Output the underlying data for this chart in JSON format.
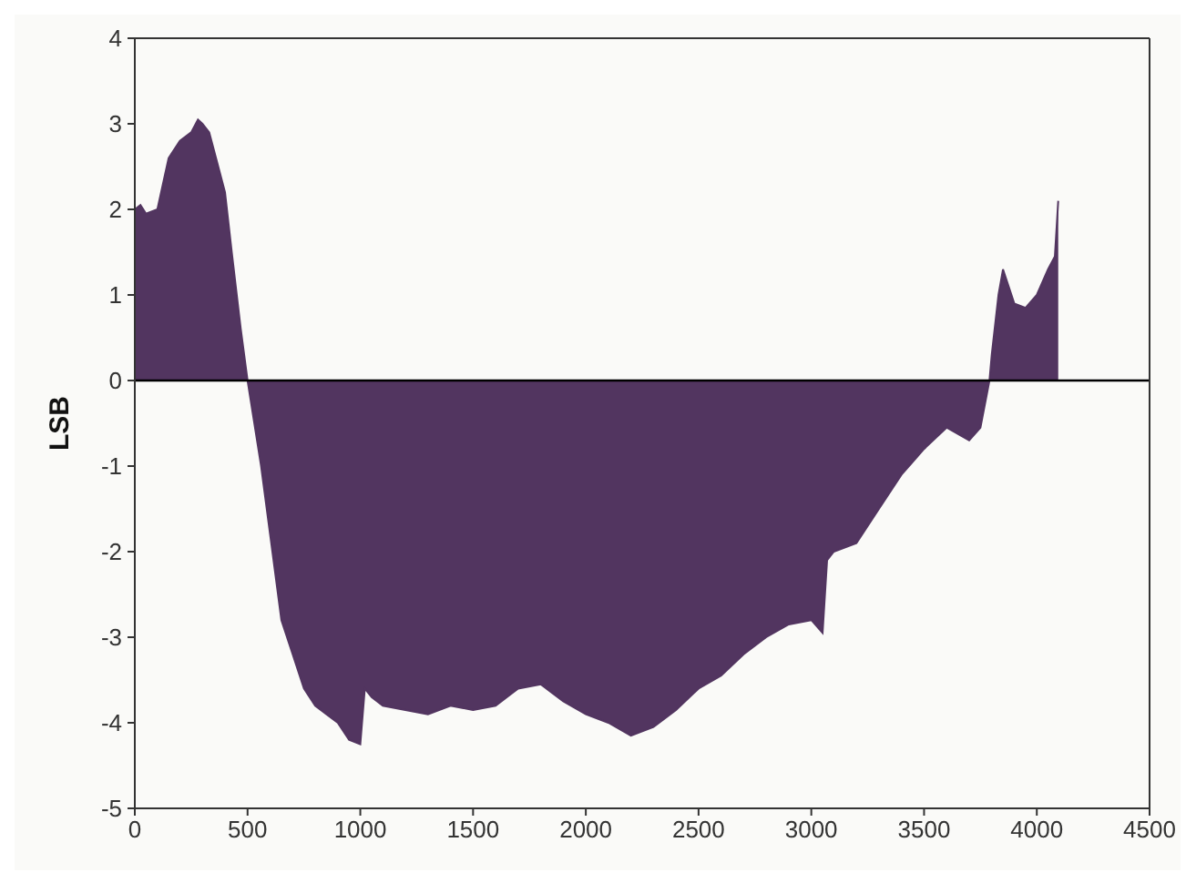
{
  "chart_data": {
    "type": "area",
    "ylabel": "LSB",
    "xlim": [
      0,
      4500
    ],
    "xticks": [
      0,
      500,
      1000,
      1500,
      2000,
      2500,
      3000,
      3500,
      4000,
      4500
    ],
    "ylim": [
      -5,
      4
    ],
    "yticks": [
      -5,
      -4,
      -3,
      -2,
      -1,
      0,
      1,
      2,
      3,
      4
    ],
    "grid": false,
    "legend": false,
    "ref_lines": [
      {
        "axis": "y",
        "value": 0,
        "color": "#000000"
      }
    ],
    "series": [
      {
        "color": "#523560",
        "x": [
          0,
          25,
          50,
          100,
          125,
          150,
          200,
          250,
          280,
          300,
          330,
          360,
          400,
          430,
          470,
          500,
          530,
          560,
          600,
          650,
          700,
          750,
          800,
          850,
          900,
          950,
          1000,
          1020,
          1050,
          1100,
          1200,
          1300,
          1400,
          1500,
          1600,
          1700,
          1800,
          1900,
          2000,
          2100,
          2200,
          2300,
          2400,
          2500,
          2600,
          2700,
          2800,
          2900,
          3000,
          3050,
          3070,
          3100,
          3200,
          3300,
          3400,
          3500,
          3600,
          3700,
          3750,
          3790,
          3800,
          3830,
          3850,
          3900,
          3950,
          4000,
          4050,
          4080,
          4095
        ],
        "values": [
          2.0,
          2.05,
          1.95,
          2.0,
          2.3,
          2.6,
          2.8,
          2.9,
          3.05,
          3.0,
          2.9,
          2.6,
          2.2,
          1.5,
          0.6,
          0,
          -0.5,
          -1.0,
          -1.8,
          -2.8,
          -3.2,
          -3.6,
          -3.8,
          -3.9,
          -4.0,
          -4.2,
          -4.25,
          -3.6,
          -3.7,
          -3.8,
          -3.85,
          -3.9,
          -3.8,
          -3.85,
          -3.8,
          -3.6,
          -3.55,
          -3.75,
          -3.9,
          -4.0,
          -4.15,
          -4.05,
          -3.85,
          -3.6,
          -3.45,
          -3.2,
          -3.0,
          -2.85,
          -2.8,
          -2.95,
          -2.1,
          -2.0,
          -1.9,
          -1.5,
          -1.1,
          -0.8,
          -0.55,
          -0.7,
          -0.55,
          0,
          0.3,
          1.0,
          1.3,
          0.9,
          0.85,
          1.0,
          1.3,
          1.45,
          2.1
        ]
      }
    ]
  }
}
